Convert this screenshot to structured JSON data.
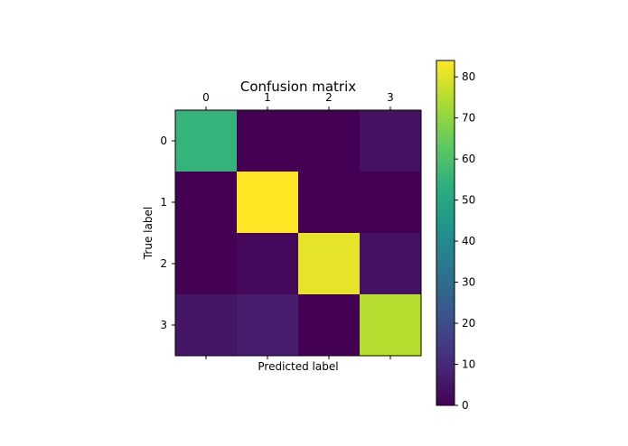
{
  "chart_data": {
    "type": "heatmap",
    "title": "Confusion matrix",
    "xlabel": "Predicted label",
    "ylabel": "True label",
    "x_categories": [
      "0",
      "1",
      "2",
      "3"
    ],
    "y_categories": [
      "0",
      "1",
      "2",
      "3"
    ],
    "values": [
      [
        55,
        0,
        0,
        4
      ],
      [
        0,
        84,
        0,
        0
      ],
      [
        0,
        2,
        81,
        4
      ],
      [
        5,
        7,
        0,
        75
      ]
    ],
    "colormap": "viridis",
    "colorbar": {
      "vmin": 0,
      "vmax": 84,
      "ticks": [
        0,
        10,
        20,
        30,
        40,
        50,
        60,
        70,
        80
      ],
      "tick_labels": [
        "0",
        "10",
        "20",
        "30",
        "40",
        "50",
        "60",
        "70",
        "80"
      ]
    },
    "x_ticks_position": "top"
  }
}
